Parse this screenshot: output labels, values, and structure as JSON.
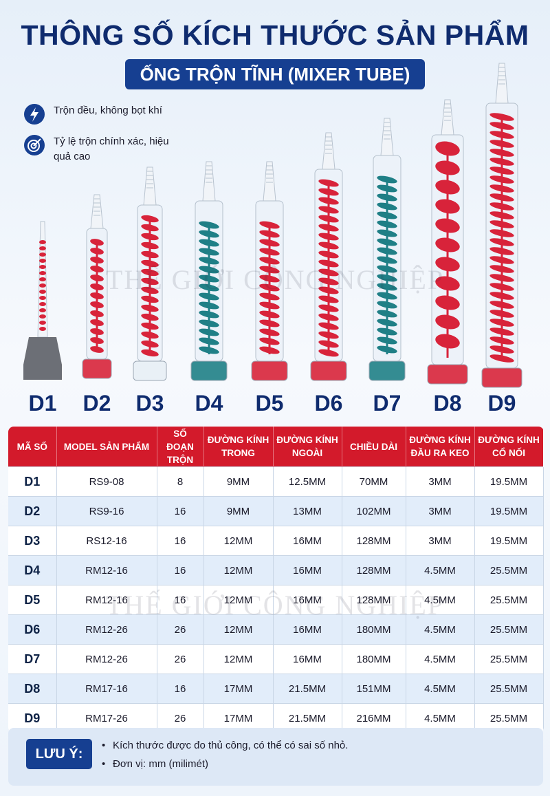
{
  "header": {
    "title": "THÔNG SỐ KÍCH THƯỚC SẢN PHẨM",
    "subtitle": "ỐNG TRỘN TĨNH (MIXER TUBE)"
  },
  "features": [
    "Trộn đều, không bọt khí",
    "Tỷ lệ trộn chính xác, hiệu quả cao"
  ],
  "watermark": "THẾ GIỚI CÔNG NGHIỆP",
  "products": [
    "D1",
    "D2",
    "D3",
    "D4",
    "D5",
    "D6",
    "D7",
    "D8",
    "D9"
  ],
  "table": {
    "headers": [
      "MÃ SỐ",
      "MODEL SẢN PHẨM",
      "SỐ ĐOẠN TRỘN",
      "ĐƯỜNG KÍNH TRONG",
      "ĐƯỜNG KÍNH NGOÀI",
      "CHIỀU DÀI",
      "ĐƯỜNG KÍNH ĐẦU RA KEO",
      "ĐƯỜNG KÍNH CỔ NỐI"
    ],
    "rows": [
      [
        "D1",
        "RS9-08",
        "8",
        "9MM",
        "12.5MM",
        "70MM",
        "3MM",
        "19.5MM"
      ],
      [
        "D2",
        "RS9-16",
        "16",
        "9MM",
        "13MM",
        "102MM",
        "3MM",
        "19.5MM"
      ],
      [
        "D3",
        "RS12-16",
        "16",
        "12MM",
        "16MM",
        "128MM",
        "3MM",
        "19.5MM"
      ],
      [
        "D4",
        "RM12-16",
        "16",
        "12MM",
        "16MM",
        "128MM",
        "4.5MM",
        "25.5MM"
      ],
      [
        "D5",
        "RM12-16",
        "16",
        "12MM",
        "16MM",
        "128MM",
        "4.5MM",
        "25.5MM"
      ],
      [
        "D6",
        "RM12-26",
        "26",
        "12MM",
        "16MM",
        "180MM",
        "4.5MM",
        "25.5MM"
      ],
      [
        "D7",
        "RM12-26",
        "26",
        "12MM",
        "16MM",
        "180MM",
        "4.5MM",
        "25.5MM"
      ],
      [
        "D8",
        "RM17-16",
        "16",
        "17MM",
        "21.5MM",
        "151MM",
        "4.5MM",
        "25.5MM"
      ],
      [
        "D9",
        "RM17-26",
        "26",
        "17MM",
        "21.5MM",
        "216MM",
        "4.5MM",
        "25.5MM"
      ]
    ]
  },
  "note": {
    "label": "LƯU Ý:",
    "items": [
      "Kích thước được đo thủ công, có thể có sai số nhỏ.",
      "Đơn vị: mm (milimét)"
    ]
  }
}
